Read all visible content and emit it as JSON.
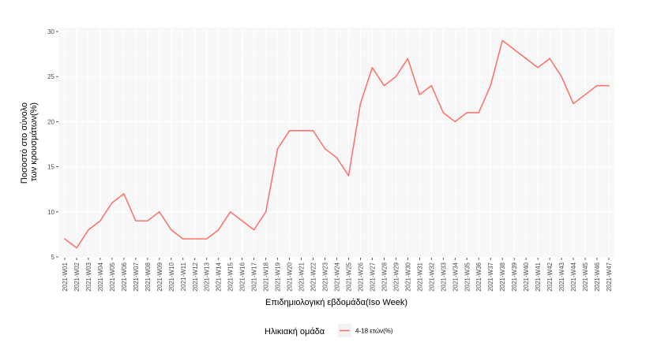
{
  "chart_data": {
    "type": "line",
    "xlabel": "Επιδημιολογική εβδομάδα(Iso Week)",
    "ylabel_lines": [
      "Ποσοστό στο σύνολο",
      "των κρουσμάτων(%)"
    ],
    "ylim": [
      5,
      30
    ],
    "yticks": [
      5,
      10,
      15,
      20,
      25,
      30
    ],
    "grid": true,
    "legend": {
      "title": "Ηλικιακή ομάδα",
      "position": "bottom"
    },
    "categories": [
      "2021-W01",
      "2021-W02",
      "2021-W03",
      "2021-W04",
      "2021-W05",
      "2021-W06",
      "2021-W07",
      "2021-W08",
      "2021-W09",
      "2021-W10",
      "2021-W11",
      "2021-W12",
      "2021-W13",
      "2021-W14",
      "2021-W15",
      "2021-W16",
      "2021-W17",
      "2021-W18",
      "2021-W19",
      "2021-W20",
      "2021-W21",
      "2021-W22",
      "2021-W23",
      "2021-W24",
      "2021-W25",
      "2021-W26",
      "2021-W27",
      "2021-W28",
      "2021-W29",
      "2021-W30",
      "2021-W31",
      "2021-W32",
      "2021-W33",
      "2021-W34",
      "2021-W35",
      "2021-W36",
      "2021-W37",
      "2021-W38",
      "2021-W39",
      "2021-W40",
      "2021-W41",
      "2021-W42",
      "2021-W43",
      "2021-W44",
      "2021-W45",
      "2021-W46",
      "2021-W47"
    ],
    "series": [
      {
        "name": "4-18 ετών(%)",
        "color": "#F8766D",
        "values": [
          7,
          6,
          8,
          9,
          11,
          12,
          9,
          9,
          10,
          8,
          7,
          7,
          7,
          8,
          10,
          9,
          8,
          10,
          17,
          19,
          19,
          19,
          17,
          16,
          14,
          22,
          26,
          24,
          25,
          27,
          23,
          24,
          21,
          20,
          21,
          21,
          24,
          29,
          28,
          27,
          26,
          27,
          25,
          22,
          23,
          24,
          24
        ]
      }
    ]
  },
  "colors": {
    "panel": "#F7F7F7",
    "gridMajor": "#FFFFFF",
    "gridMinor": "#FBFBFB",
    "tick": "#333333"
  }
}
